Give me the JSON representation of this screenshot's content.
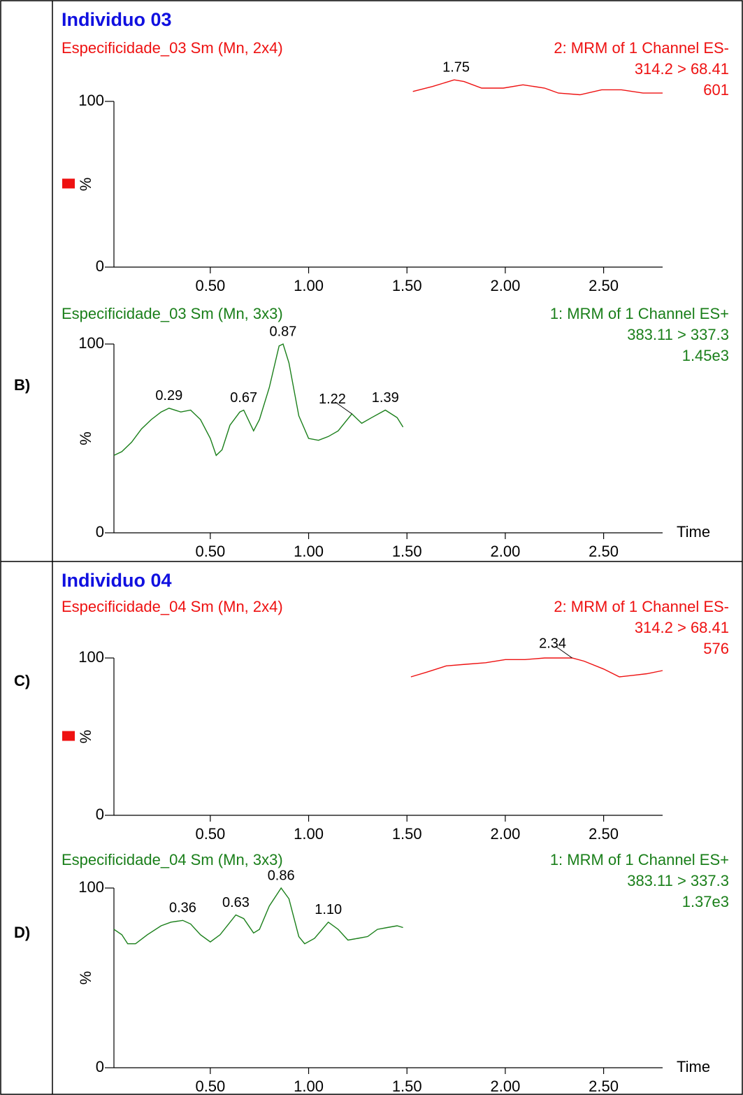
{
  "headings": [
    "Individuo 03",
    "Individuo 04"
  ],
  "panels": [
    {
      "label": "B)"
    },
    {
      "label": "C)"
    },
    {
      "label": "D)"
    }
  ],
  "chart_data": [
    {
      "type": "line",
      "title": "Especificidade_03 Sm (Mn, 2x4)",
      "channel": "2: MRM of 1 Channel ES-",
      "transition": "314.2 > 68.41",
      "intensity": "601",
      "color": "#ee1111",
      "ylabel": "%",
      "marker": true,
      "x": [
        1.53,
        1.63,
        1.74,
        1.79,
        1.88,
        1.99,
        2.09,
        2.2,
        2.27,
        2.38,
        2.49,
        2.59,
        2.7,
        2.8
      ],
      "values": [
        106,
        109,
        113,
        112,
        108,
        108,
        110,
        108,
        105,
        104,
        107,
        107,
        105,
        105
      ],
      "xlim": [
        0.01,
        2.8
      ],
      "ylim": [
        0,
        100
      ],
      "xticks": [
        {
          "value": 0.5,
          "label": "0.50"
        },
        {
          "value": 1.0,
          "label": "1.00"
        },
        {
          "value": 1.5,
          "label": "1.50"
        },
        {
          "value": 2.0,
          "label": "2.00"
        },
        {
          "value": 2.5,
          "label": "2.50"
        }
      ],
      "yticks": [
        0,
        100
      ],
      "peaks": [
        {
          "x": 1.75,
          "y": 113,
          "label": "1.75"
        }
      ]
    },
    {
      "type": "line",
      "title": "Especificidade_03 Sm (Mn, 3x3)",
      "channel": "1: MRM of 1 Channel ES+",
      "transition": "383.11 > 337.3",
      "intensity": "1.45e3",
      "color": "#1a7f1a",
      "ylabel": "%",
      "xlabel": "Time",
      "marker": false,
      "x": [
        0.01,
        0.05,
        0.1,
        0.15,
        0.2,
        0.25,
        0.29,
        0.35,
        0.4,
        0.45,
        0.5,
        0.53,
        0.56,
        0.6,
        0.65,
        0.67,
        0.72,
        0.75,
        0.8,
        0.85,
        0.87,
        0.9,
        0.95,
        1.0,
        1.05,
        1.1,
        1.15,
        1.22,
        1.27,
        1.32,
        1.39,
        1.45,
        1.48
      ],
      "values": [
        41,
        43,
        48,
        55,
        60,
        64,
        66,
        64,
        65,
        60,
        50,
        41,
        44,
        57,
        64,
        65,
        54,
        60,
        77,
        99,
        100,
        90,
        62,
        50,
        49,
        51,
        54,
        63,
        58,
        61,
        65,
        61,
        56
      ],
      "xlim": [
        0.01,
        2.8
      ],
      "ylim": [
        0,
        100
      ],
      "xticks": [
        {
          "value": 0.5,
          "label": "0.50"
        },
        {
          "value": 1.0,
          "label": "1.00"
        },
        {
          "value": 1.5,
          "label": "1.50"
        },
        {
          "value": 2.0,
          "label": "2.00"
        },
        {
          "value": 2.5,
          "label": "2.50"
        }
      ],
      "yticks": [
        0,
        100
      ],
      "peaks": [
        {
          "x": 0.29,
          "y": 66,
          "label": "0.29"
        },
        {
          "x": 0.67,
          "y": 65,
          "label": "0.67"
        },
        {
          "x": 0.87,
          "y": 100,
          "label": "0.87"
        },
        {
          "x": 1.22,
          "y": 63,
          "label": "1.22",
          "leader": true
        },
        {
          "x": 1.39,
          "y": 65,
          "label": "1.39"
        }
      ]
    },
    {
      "type": "line",
      "title": "Especificidade_04 Sm (Mn, 2x4)",
      "channel": "2: MRM of 1 Channel ES-",
      "transition": "314.2 > 68.41",
      "intensity": "576",
      "color": "#ee1111",
      "ylabel": "%",
      "marker": true,
      "x": [
        1.52,
        1.6,
        1.7,
        1.8,
        1.9,
        2.0,
        2.1,
        2.2,
        2.34,
        2.4,
        2.5,
        2.58,
        2.65,
        2.72,
        2.8
      ],
      "values": [
        88,
        91,
        95,
        96,
        97,
        99,
        99,
        100,
        100,
        98,
        93,
        88,
        89,
        90,
        92
      ],
      "xlim": [
        0.01,
        2.8
      ],
      "ylim": [
        0,
        100
      ],
      "xticks": [
        {
          "value": 0.5,
          "label": "0.50"
        },
        {
          "value": 1.0,
          "label": "1.00"
        },
        {
          "value": 1.5,
          "label": "1.50"
        },
        {
          "value": 2.0,
          "label": "2.00"
        },
        {
          "value": 2.5,
          "label": "2.50"
        }
      ],
      "yticks": [
        0,
        100
      ],
      "peaks": [
        {
          "x": 2.34,
          "y": 100,
          "label": "2.34",
          "leader": true
        }
      ]
    },
    {
      "type": "line",
      "title": "Especificidade_04 Sm (Mn, 3x3)",
      "channel": "1: MRM of 1 Channel ES+",
      "transition": "383.11 > 337.3",
      "intensity": "1.37e3",
      "color": "#1a7f1a",
      "ylabel": "%",
      "xlabel": "Time",
      "marker": false,
      "x": [
        0.01,
        0.05,
        0.08,
        0.12,
        0.18,
        0.25,
        0.3,
        0.36,
        0.4,
        0.45,
        0.5,
        0.55,
        0.63,
        0.67,
        0.72,
        0.75,
        0.8,
        0.86,
        0.9,
        0.95,
        0.98,
        1.03,
        1.1,
        1.15,
        1.2,
        1.25,
        1.3,
        1.35,
        1.4,
        1.45,
        1.48
      ],
      "values": [
        77,
        74,
        69,
        69,
        74,
        79,
        81,
        82,
        80,
        74,
        70,
        74,
        85,
        83,
        75,
        77,
        90,
        100,
        94,
        73,
        69,
        72,
        81,
        77,
        71,
        72,
        73,
        77,
        78,
        79,
        78
      ],
      "xlim": [
        0.01,
        2.8
      ],
      "ylim": [
        0,
        100
      ],
      "xticks": [
        {
          "value": 0.5,
          "label": "0.50"
        },
        {
          "value": 1.0,
          "label": "1.00"
        },
        {
          "value": 1.5,
          "label": "1.50"
        },
        {
          "value": 2.0,
          "label": "2.00"
        },
        {
          "value": 2.5,
          "label": "2.50"
        }
      ],
      "yticks": [
        0,
        100
      ],
      "peaks": [
        {
          "x": 0.36,
          "y": 82,
          "label": "0.36"
        },
        {
          "x": 0.63,
          "y": 85,
          "label": "0.63"
        },
        {
          "x": 0.86,
          "y": 100,
          "label": "0.86"
        },
        {
          "x": 1.1,
          "y": 81,
          "label": "1.10"
        }
      ]
    }
  ]
}
